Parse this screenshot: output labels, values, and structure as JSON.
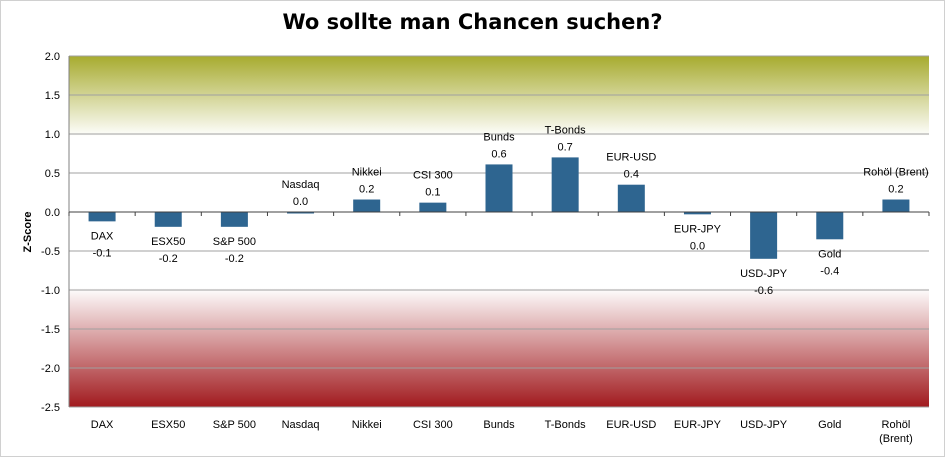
{
  "chart_data": {
    "type": "bar",
    "title": "Wo sollte man Chancen suchen?",
    "xlabel": "",
    "ylabel": "Z-Score",
    "ylim": [
      -2.5,
      2.0
    ],
    "yticks": [
      "2.0",
      "1.5",
      "1.0",
      "0.5",
      "0.0",
      "-0.5",
      "-1.0",
      "-1.5",
      "-2.0",
      "-2.5"
    ],
    "ytick_values": [
      2.0,
      1.5,
      1.0,
      0.5,
      0.0,
      -0.5,
      -1.0,
      -1.5,
      -2.0,
      -2.5
    ],
    "categories": [
      [
        "DAX"
      ],
      [
        "ESX50"
      ],
      [
        "S&P 500"
      ],
      [
        "Nasdaq"
      ],
      [
        "Nikkei"
      ],
      [
        "CSI 300"
      ],
      [
        "Bunds"
      ],
      [
        "T-Bonds"
      ],
      [
        "EUR-USD"
      ],
      [
        "EUR-JPY"
      ],
      [
        "USD-JPY"
      ],
      [
        "Gold"
      ],
      [
        "Rohöl",
        "(Brent)"
      ]
    ],
    "values": [
      -0.12,
      -0.19,
      -0.19,
      0.0,
      0.16,
      0.12,
      0.61,
      0.7,
      0.35,
      -0.03,
      -0.6,
      -0.35,
      0.16
    ],
    "data_labels": [
      {
        "name": "DAX",
        "value": "-0.1"
      },
      {
        "name": "ESX50",
        "value": "-0.2"
      },
      {
        "name": "S&P 500",
        "value": "-0.2"
      },
      {
        "name": "Nasdaq",
        "value": "0.0"
      },
      {
        "name": "Nikkei",
        "value": "0.2"
      },
      {
        "name": "CSI 300",
        "value": "0.1"
      },
      {
        "name": "Bunds",
        "value": "0.6"
      },
      {
        "name": "T-Bonds",
        "value": "0.7"
      },
      {
        "name": "EUR-USD",
        "value": "0.4"
      },
      {
        "name": "EUR-JPY",
        "value": "0.0"
      },
      {
        "name": "USD-JPY",
        "value": "-0.6"
      },
      {
        "name": "Gold",
        "value": "-0.4"
      },
      {
        "name": "Rohöl (Brent)",
        "value": "0.2"
      }
    ],
    "grid": true,
    "legend": "none",
    "colors": {
      "bar": "#2e6590",
      "top_gradient": "#a7ab2f",
      "bottom_gradient": "#a11a1e",
      "gridline": "#a0a0a0"
    }
  }
}
